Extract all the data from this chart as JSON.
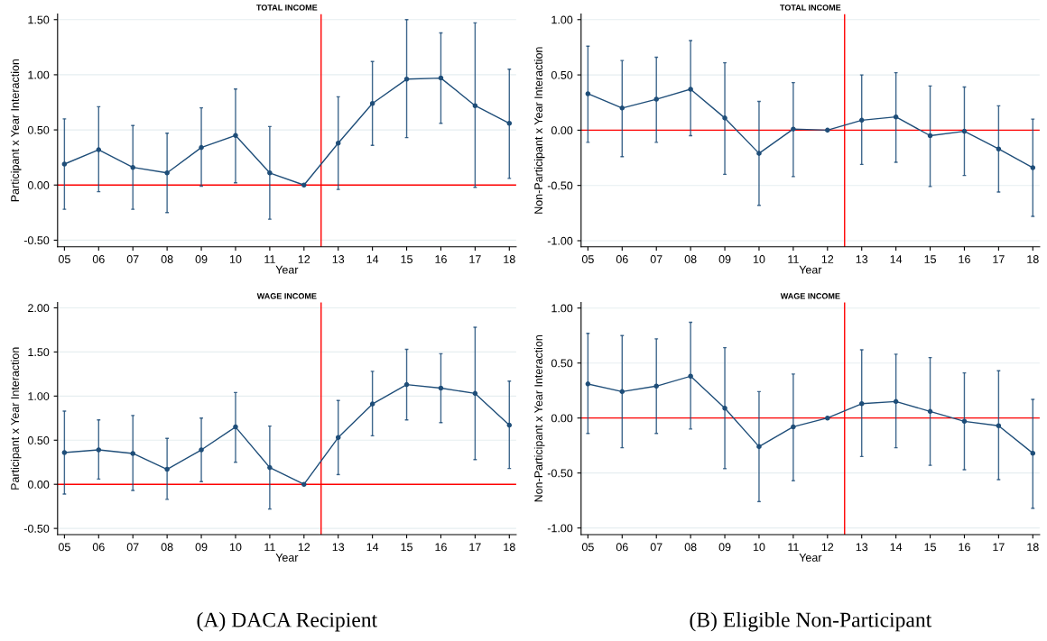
{
  "chart_data": [
    {
      "type": "line",
      "title": "TOTAL INCOME",
      "xlabel": "Year",
      "ylabel": "Participant x Year Interaction",
      "x": [
        5,
        6,
        7,
        8,
        9,
        10,
        11,
        12,
        13,
        14,
        15,
        16,
        17,
        18
      ],
      "xlim": [
        4.8,
        18.2
      ],
      "xticks": [
        {
          "value": 5,
          "label": "05"
        },
        {
          "value": 6,
          "label": "06"
        },
        {
          "value": 7,
          "label": "07"
        },
        {
          "value": 8,
          "label": "08"
        },
        {
          "value": 9,
          "label": "09"
        },
        {
          "value": 10,
          "label": "10"
        },
        {
          "value": 11,
          "label": "11"
        },
        {
          "value": 12,
          "label": "12"
        },
        {
          "value": 13,
          "label": "13"
        },
        {
          "value": 14,
          "label": "14"
        },
        {
          "value": 15,
          "label": "15"
        },
        {
          "value": 16,
          "label": "16"
        },
        {
          "value": 17,
          "label": "17"
        },
        {
          "value": 18,
          "label": "18"
        }
      ],
      "ylim": [
        -0.56,
        1.55
      ],
      "yticks": [
        {
          "value": -0.5,
          "label": "-0.50"
        },
        {
          "value": 0,
          "label": "0.00"
        },
        {
          "value": 0.5,
          "label": "0.50"
        },
        {
          "value": 1,
          "label": "1.00"
        },
        {
          "value": 1.5,
          "label": "1.50"
        }
      ],
      "series": [
        {
          "color": "#1f4e79",
          "values": [
            0.19,
            0.32,
            0.16,
            0.11,
            0.34,
            0.45,
            0.11,
            0,
            0.38,
            0.74,
            0.96,
            0.97,
            0.72,
            0.56
          ],
          "errors": [
            [
              -0.22,
              0.6
            ],
            [
              -0.06,
              0.71
            ],
            [
              -0.22,
              0.54
            ],
            [
              -0.25,
              0.47
            ],
            [
              -0.01,
              0.7
            ],
            [
              0.02,
              0.87
            ],
            [
              -0.31,
              0.53
            ],
            null,
            [
              -0.04,
              0.8
            ],
            [
              0.36,
              1.12
            ],
            [
              0.43,
              1.5
            ],
            [
              0.56,
              1.38
            ],
            [
              -0.02,
              1.47
            ],
            [
              0.06,
              1.05
            ]
          ]
        }
      ],
      "ref_lines": [
        {
          "axis": "y",
          "value": 0,
          "color": "#ff0000"
        },
        {
          "axis": "x",
          "value": 12.5,
          "color": "#ff0000"
        }
      ],
      "marker": "circle",
      "grid": "y"
    },
    {
      "type": "line",
      "title": "TOTAL INCOME",
      "xlabel": "Year",
      "ylabel": "Non-Participant x Year Interaction",
      "x": [
        5,
        6,
        7,
        8,
        9,
        10,
        11,
        12,
        13,
        14,
        15,
        16,
        17,
        18
      ],
      "xlim": [
        4.8,
        18.2
      ],
      "xticks": [
        {
          "value": 5,
          "label": "05"
        },
        {
          "value": 6,
          "label": "06"
        },
        {
          "value": 7,
          "label": "07"
        },
        {
          "value": 8,
          "label": "08"
        },
        {
          "value": 9,
          "label": "09"
        },
        {
          "value": 10,
          "label": "10"
        },
        {
          "value": 11,
          "label": "11"
        },
        {
          "value": 12,
          "label": "12"
        },
        {
          "value": 13,
          "label": "13"
        },
        {
          "value": 14,
          "label": "14"
        },
        {
          "value": 15,
          "label": "15"
        },
        {
          "value": 16,
          "label": "16"
        },
        {
          "value": 17,
          "label": "17"
        },
        {
          "value": 18,
          "label": "18"
        }
      ],
      "ylim": [
        -1.055,
        1.05
      ],
      "yticks": [
        {
          "value": -1,
          "label": "-1.00"
        },
        {
          "value": -0.5,
          "label": "-0.50"
        },
        {
          "value": 0,
          "label": "0.00"
        },
        {
          "value": 0.5,
          "label": "0.50"
        },
        {
          "value": 1,
          "label": "1.00"
        }
      ],
      "series": [
        {
          "color": "#1f4e79",
          "values": [
            0.33,
            0.2,
            0.28,
            0.37,
            0.11,
            -0.21,
            0.01,
            0,
            0.09,
            0.12,
            -0.05,
            -0.01,
            -0.17,
            -0.34
          ],
          "errors": [
            [
              -0.11,
              0.76
            ],
            [
              -0.24,
              0.63
            ],
            [
              -0.11,
              0.66
            ],
            [
              -0.05,
              0.81
            ],
            [
              -0.4,
              0.61
            ],
            [
              -0.68,
              0.26
            ],
            [
              -0.42,
              0.43
            ],
            null,
            [
              -0.31,
              0.5
            ],
            [
              -0.29,
              0.52
            ],
            [
              -0.51,
              0.4
            ],
            [
              -0.41,
              0.39
            ],
            [
              -0.56,
              0.22
            ],
            [
              -0.78,
              0.1
            ]
          ]
        }
      ],
      "ref_lines": [
        {
          "axis": "y",
          "value": 0,
          "color": "#ff0000"
        },
        {
          "axis": "x",
          "value": 12.5,
          "color": "#ff0000"
        }
      ],
      "marker": "circle",
      "grid": "y"
    },
    {
      "type": "line",
      "title": "WAGE INCOME",
      "xlabel": "Year",
      "ylabel": "Participant x Year Interaction",
      "x": [
        5,
        6,
        7,
        8,
        9,
        10,
        11,
        12,
        13,
        14,
        15,
        16,
        17,
        18
      ],
      "xlim": [
        4.8,
        18.2
      ],
      "xticks": [
        {
          "value": 5,
          "label": "05"
        },
        {
          "value": 6,
          "label": "06"
        },
        {
          "value": 7,
          "label": "07"
        },
        {
          "value": 8,
          "label": "08"
        },
        {
          "value": 9,
          "label": "09"
        },
        {
          "value": 10,
          "label": "10"
        },
        {
          "value": 11,
          "label": "11"
        },
        {
          "value": 12,
          "label": "12"
        },
        {
          "value": 13,
          "label": "13"
        },
        {
          "value": 14,
          "label": "14"
        },
        {
          "value": 15,
          "label": "15"
        },
        {
          "value": 16,
          "label": "16"
        },
        {
          "value": 17,
          "label": "17"
        },
        {
          "value": 18,
          "label": "18"
        }
      ],
      "ylim": [
        -0.57,
        2.06
      ],
      "yticks": [
        {
          "value": -0.5,
          "label": "-0.50"
        },
        {
          "value": 0,
          "label": "0.00"
        },
        {
          "value": 0.5,
          "label": "0.50"
        },
        {
          "value": 1,
          "label": "1.00"
        },
        {
          "value": 1.5,
          "label": "1.50"
        },
        {
          "value": 2,
          "label": "2.00"
        }
      ],
      "series": [
        {
          "color": "#1f4e79",
          "values": [
            0.36,
            0.39,
            0.35,
            0.17,
            0.39,
            0.65,
            0.19,
            0,
            0.53,
            0.91,
            1.13,
            1.09,
            1.03,
            0.67
          ],
          "errors": [
            [
              -0.11,
              0.83
            ],
            [
              0.06,
              0.73
            ],
            [
              -0.07,
              0.78
            ],
            [
              -0.17,
              0.52
            ],
            [
              0.03,
              0.75
            ],
            [
              0.25,
              1.04
            ],
            [
              -0.28,
              0.66
            ],
            null,
            [
              0.11,
              0.95
            ],
            [
              0.55,
              1.28
            ],
            [
              0.73,
              1.53
            ],
            [
              0.7,
              1.48
            ],
            [
              0.28,
              1.78
            ],
            [
              0.18,
              1.17
            ]
          ]
        }
      ],
      "ref_lines": [
        {
          "axis": "y",
          "value": 0,
          "color": "#ff0000"
        },
        {
          "axis": "x",
          "value": 12.5,
          "color": "#ff0000"
        }
      ],
      "annotations": [
        "(A) DACA Recipient"
      ],
      "marker": "circle",
      "grid": "y"
    },
    {
      "type": "line",
      "title": "WAGE INCOME",
      "xlabel": "Year",
      "ylabel": "Non-Participant x Year Interaction",
      "x": [
        5,
        6,
        7,
        8,
        9,
        10,
        11,
        12,
        13,
        14,
        15,
        16,
        17,
        18
      ],
      "xlim": [
        4.8,
        18.2
      ],
      "xticks": [
        {
          "value": 5,
          "label": "05"
        },
        {
          "value": 6,
          "label": "06"
        },
        {
          "value": 7,
          "label": "07"
        },
        {
          "value": 8,
          "label": "08"
        },
        {
          "value": 9,
          "label": "09"
        },
        {
          "value": 10,
          "label": "10"
        },
        {
          "value": 11,
          "label": "11"
        },
        {
          "value": 12,
          "label": "12"
        },
        {
          "value": 13,
          "label": "13"
        },
        {
          "value": 14,
          "label": "14"
        },
        {
          "value": 15,
          "label": "15"
        },
        {
          "value": 16,
          "label": "16"
        },
        {
          "value": 17,
          "label": "17"
        },
        {
          "value": 18,
          "label": "18"
        }
      ],
      "ylim": [
        -1.06,
        1.05
      ],
      "yticks": [
        {
          "value": -1,
          "label": "-1.00"
        },
        {
          "value": -0.5,
          "label": "-0.50"
        },
        {
          "value": 0,
          "label": "0.00"
        },
        {
          "value": 0.5,
          "label": "0.50"
        },
        {
          "value": 1,
          "label": "1.00"
        }
      ],
      "series": [
        {
          "color": "#1f4e79",
          "values": [
            0.31,
            0.24,
            0.29,
            0.38,
            0.09,
            -0.26,
            -0.08,
            0,
            0.13,
            0.15,
            0.06,
            -0.03,
            -0.07,
            -0.32
          ],
          "errors": [
            [
              -0.14,
              0.77
            ],
            [
              -0.27,
              0.75
            ],
            [
              -0.14,
              0.72
            ],
            [
              -0.1,
              0.87
            ],
            [
              -0.46,
              0.64
            ],
            [
              -0.76,
              0.24
            ],
            [
              -0.57,
              0.4
            ],
            null,
            [
              -0.35,
              0.62
            ],
            [
              -0.27,
              0.58
            ],
            [
              -0.43,
              0.55
            ],
            [
              -0.47,
              0.41
            ],
            [
              -0.56,
              0.43
            ],
            [
              -0.82,
              0.17
            ]
          ]
        }
      ],
      "ref_lines": [
        {
          "axis": "y",
          "value": 0,
          "color": "#ff0000"
        },
        {
          "axis": "x",
          "value": 12.5,
          "color": "#ff0000"
        }
      ],
      "annotations": [
        "(B) Eligible Non-Participant"
      ],
      "marker": "circle",
      "grid": "y"
    }
  ]
}
